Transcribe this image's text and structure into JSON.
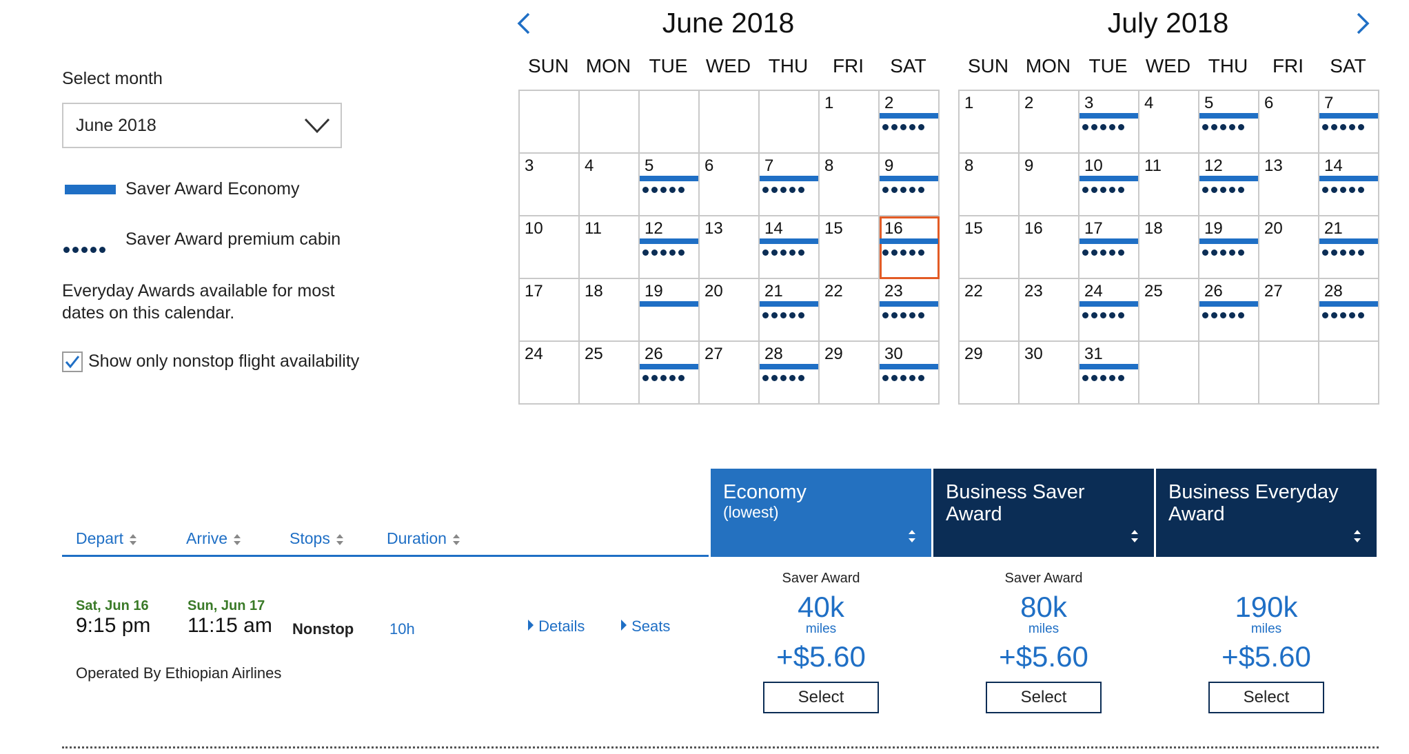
{
  "left": {
    "select_label": "Select month",
    "selected_month": "June 2018",
    "legend_economy": "Saver Award Economy",
    "legend_premium": "Saver Award premium cabin",
    "everyday_note": "Everyday Awards available for most dates on this calendar.",
    "nonstop_label": "Show only nonstop flight availability",
    "nonstop_checked": true
  },
  "colors": {
    "accent": "#1f6fc5",
    "dark_navy": "#0b2d55",
    "selected_outline": "#e35b25",
    "green_date": "#3a7a28"
  },
  "calendars": [
    {
      "title": "June 2018",
      "first_weekday": 5,
      "days": 30,
      "economy": [
        2,
        5,
        7,
        9,
        12,
        14,
        16,
        19,
        21,
        23,
        26,
        28,
        30
      ],
      "premium": [
        2,
        5,
        7,
        9,
        12,
        14,
        16,
        21,
        23,
        26,
        28,
        30
      ],
      "selected": 16
    },
    {
      "title": "July 2018",
      "first_weekday": 0,
      "days": 31,
      "economy": [
        3,
        5,
        7,
        10,
        12,
        14,
        17,
        19,
        21,
        24,
        26,
        28,
        31
      ],
      "premium": [
        3,
        5,
        7,
        10,
        12,
        14,
        17,
        19,
        21,
        24,
        26,
        28,
        31
      ],
      "selected": null
    }
  ],
  "weekdays": [
    "SUN",
    "MON",
    "TUE",
    "WED",
    "THU",
    "FRI",
    "SAT"
  ],
  "sort_headers": [
    "Depart",
    "Arrive",
    "Stops",
    "Duration"
  ],
  "fare_headers": [
    {
      "title": "Economy",
      "subtitle": "(lowest)",
      "color": "#2471c0"
    },
    {
      "title": "Business Saver Award",
      "subtitle": "",
      "color": "#0b2d55"
    },
    {
      "title": "Business Everyday Award",
      "subtitle": "",
      "color": "#0b2d55"
    }
  ],
  "flight": {
    "depart_date": "Sat, Jun 16",
    "depart_time": "9:15 pm",
    "arrive_date": "Sun, Jun 17",
    "arrive_time": "11:15 am",
    "stops": "Nonstop",
    "duration": "10h",
    "details_label": "Details",
    "seats_label": "Seats",
    "operated_by": "Operated By Ethiopian Airlines"
  },
  "fares": [
    {
      "type": "Saver Award",
      "miles": "40k",
      "unit": "miles",
      "tax": "+$5.60",
      "select": "Select"
    },
    {
      "type": "Saver Award",
      "miles": "80k",
      "unit": "miles",
      "tax": "+$5.60",
      "select": "Select"
    },
    {
      "type": "",
      "miles": "190k",
      "unit": "miles",
      "tax": "+$5.60",
      "select": "Select"
    }
  ]
}
